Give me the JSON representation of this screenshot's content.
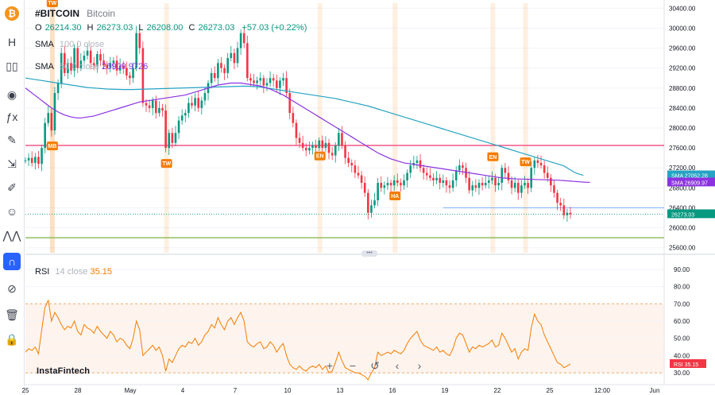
{
  "toolbar": {
    "items": [
      {
        "name": "bitcoin-logo-icon",
        "glyph": "₿"
      },
      {
        "name": "chart-type-icon",
        "glyph": "H"
      },
      {
        "name": "candles-icon",
        "glyph": "▯▯"
      },
      {
        "name": "record-icon",
        "glyph": "◉"
      },
      {
        "name": "indicators-icon",
        "glyph": "ƒx"
      },
      {
        "name": "drawing-icon",
        "glyph": "✎"
      },
      {
        "name": "measure-icon",
        "glyph": "⇲"
      },
      {
        "name": "brush-icon",
        "glyph": "✐"
      },
      {
        "name": "emoji-icon",
        "glyph": "☺"
      },
      {
        "name": "patterns-icon",
        "glyph": "⋀⋀"
      },
      {
        "name": "magnet-icon",
        "glyph": "∩"
      },
      {
        "name": "hide-icon",
        "glyph": "⊘"
      },
      {
        "name": "trash-icon",
        "glyph": "🗑"
      },
      {
        "name": "lock-icon",
        "glyph": "🔒"
      }
    ]
  },
  "legend": {
    "symbol": "#BITCOIN",
    "description": "Bitcoin",
    "ohlc": {
      "o_label": "O",
      "o": "26214.30",
      "h_label": "H",
      "h": "26273.03",
      "l_label": "L",
      "l": "26208.00",
      "c_label": "C",
      "c": "26273.03",
      "change": "+57.03 (+0.22%)"
    },
    "sma1": {
      "label": "SMA",
      "params": "100 0 close"
    },
    "sma2": {
      "label": "SMA",
      "params": "50 0 close",
      "value": "26909.9726"
    },
    "rsi": {
      "label": "RSI",
      "params": "14 close",
      "value": "35.15"
    }
  },
  "watermark": "InstaFintech",
  "nav_buttons": [
    "+",
    "−",
    "↺",
    "‹",
    "›"
  ],
  "colors": {
    "up": "#089981",
    "down": "#f23645",
    "sma100": "#26a3c4",
    "sma50": "#8c32e0",
    "resistance": "#f23672",
    "support": "#7cb342",
    "rsi": "#f57c00",
    "marker": "#f57c00",
    "grid": "#f0f3fa"
  },
  "chart_data": [
    {
      "type": "candlestick",
      "title": "#BITCOIN",
      "y_ticks": [
        25600,
        26000,
        26400,
        26800,
        27200,
        27600,
        28000,
        28400,
        28800,
        29200,
        29600,
        30000,
        30400
      ],
      "y_tick_labels": [
        "25600.00",
        "26000.00",
        "26400.00",
        "26800.00",
        "27200.00",
        "27600.00",
        "28000.00",
        "28400.00",
        "28800.00",
        "29200.00",
        "29600.00",
        "30000.00",
        "30400.00"
      ],
      "ylim": [
        25500,
        30500
      ],
      "x_tick_labels": [
        "25",
        "28",
        "May",
        "4",
        "7",
        "10",
        "13",
        "16",
        "19",
        "22",
        "25",
        "12:00",
        "Jun"
      ],
      "x_tick_index": [
        0,
        17,
        34,
        51,
        68,
        85,
        102,
        119,
        136,
        153,
        170,
        187,
        204
      ],
      "close": [
        27350,
        27400,
        27300,
        27420,
        27280,
        27600,
        28100,
        28300,
        27950,
        28700,
        28900,
        29500,
        29100,
        29300,
        29150,
        29600,
        29200,
        29350,
        29450,
        29550,
        29300,
        29250,
        29480,
        29350,
        29250,
        29200,
        29300,
        29350,
        29150,
        29250,
        29200,
        29050,
        29000,
        29200,
        29900,
        29600,
        28500,
        28450,
        28400,
        28550,
        28300,
        28400,
        28350,
        27600,
        27900,
        27700,
        27900,
        28150,
        28250,
        28300,
        28500,
        28450,
        28600,
        28400,
        28550,
        28700,
        28900,
        29100,
        29000,
        29300,
        29200,
        29100,
        29400,
        29500,
        29300,
        29600,
        29900,
        29700,
        29000,
        28950,
        28900,
        28950,
        29000,
        28850,
        28900,
        29000,
        28950,
        28800,
        28950,
        29000,
        28700,
        28300,
        28100,
        27800,
        27700,
        27600,
        27550,
        27600,
        27650,
        27600,
        27750,
        27600,
        27700,
        27500,
        27450,
        27650,
        27900,
        27650,
        27400,
        27300,
        27250,
        27100,
        27050,
        26900,
        26700,
        26300,
        26450,
        26550,
        26900,
        26800,
        26850,
        26900,
        26850,
        26950,
        26900,
        26850,
        26950,
        27100,
        27250,
        27300,
        27350,
        27200,
        27100,
        27050,
        27000,
        26950,
        27000,
        26900,
        26950,
        26850,
        26800,
        26950,
        27150,
        27250,
        27200,
        27000,
        26750,
        26850,
        26800,
        26900,
        26850,
        26900,
        26950,
        27000,
        26850,
        26900,
        27200,
        27100,
        26950,
        26800,
        26900,
        26700,
        26850,
        26900,
        26800,
        27200,
        27350,
        27300,
        27250,
        27100,
        27000,
        26850,
        26700,
        26500,
        26450,
        26250,
        26300,
        26273.03
      ],
      "sma100": [
        29000,
        28990,
        28980,
        28970,
        28960,
        28950,
        28940,
        28930,
        28920,
        28910,
        28900,
        28890,
        28880,
        28870,
        28860,
        28850,
        28840,
        28830,
        28820,
        28810,
        28805,
        28800,
        28795,
        28790,
        28785,
        28780,
        28778,
        28776,
        28774,
        28772,
        28770,
        28770,
        28770,
        28770,
        28772,
        28774,
        28776,
        28778,
        28780,
        28782,
        28784,
        28786,
        28788,
        28790,
        28792,
        28794,
        28796,
        28798,
        28800,
        28802,
        28804,
        28806,
        28808,
        28810,
        28812,
        28814,
        28816,
        28818,
        28820,
        28822,
        28824,
        28826,
        28828,
        28830,
        28832,
        28834,
        28836,
        28838,
        28836,
        28834,
        28830,
        28825,
        28820,
        28810,
        28800,
        28790,
        28780,
        28770,
        28760,
        28750,
        28740,
        28730,
        28720,
        28710,
        28700,
        28690,
        28680,
        28670,
        28660,
        28650,
        28640,
        28630,
        28620,
        28610,
        28600,
        28590,
        28575,
        28560,
        28545,
        28530,
        28515,
        28500,
        28485,
        28470,
        28455,
        28440,
        28420,
        28400,
        28380,
        28360,
        28340,
        28320,
        28300,
        28280,
        28260,
        28240,
        28220,
        28200,
        28180,
        28160,
        28140,
        28120,
        28100,
        28080,
        28060,
        28040,
        28020,
        28000,
        27980,
        27960,
        27940,
        27920,
        27900,
        27880,
        27860,
        27840,
        27820,
        27800,
        27780,
        27760,
        27740,
        27720,
        27700,
        27680,
        27660,
        27640,
        27620,
        27600,
        27580,
        27560,
        27540,
        27520,
        27500,
        27480,
        27460,
        27440,
        27420,
        27400,
        27380,
        27360,
        27340,
        27320,
        27300,
        27280,
        27260,
        27240,
        27200,
        27160,
        27120,
        27090,
        27070,
        27052.28
      ],
      "sma50": [
        28800,
        28750,
        28700,
        28650,
        28600,
        28550,
        28500,
        28450,
        28400,
        28360,
        28320,
        28290,
        28260,
        28240,
        28220,
        28210,
        28200,
        28200,
        28210,
        28220,
        28230,
        28240,
        28260,
        28280,
        28300,
        28320,
        28340,
        28360,
        28380,
        28400,
        28420,
        28440,
        28460,
        28480,
        28500,
        28520,
        28530,
        28540,
        28550,
        28560,
        28570,
        28580,
        28590,
        28600,
        28610,
        28620,
        28630,
        28640,
        28650,
        28660,
        28680,
        28700,
        28720,
        28740,
        28760,
        28780,
        28800,
        28820,
        28840,
        28860,
        28870,
        28880,
        28890,
        28900,
        28900,
        28900,
        28900,
        28890,
        28880,
        28870,
        28860,
        28850,
        28840,
        28820,
        28800,
        28780,
        28750,
        28720,
        28690,
        28660,
        28620,
        28580,
        28540,
        28500,
        28460,
        28420,
        28380,
        28340,
        28300,
        28260,
        28220,
        28180,
        28140,
        28100,
        28060,
        28020,
        27980,
        27940,
        27900,
        27860,
        27820,
        27780,
        27740,
        27700,
        27660,
        27620,
        27580,
        27540,
        27500,
        27470,
        27440,
        27410,
        27380,
        27360,
        27340,
        27320,
        27300,
        27290,
        27280,
        27270,
        27260,
        27250,
        27240,
        27230,
        27220,
        27210,
        27200,
        27190,
        27180,
        27170,
        27160,
        27150,
        27140,
        27130,
        27120,
        27110,
        27100,
        27090,
        27080,
        27070,
        27060,
        27050,
        27040,
        27030,
        27020,
        27010,
        27000,
        26995,
        26990,
        26985,
        26980,
        26978,
        26976,
        26974,
        26972,
        26970,
        26968,
        26966,
        26964,
        26962,
        26960,
        26958,
        26956,
        26954,
        26950,
        26945,
        26940,
        26935,
        26930,
        26925,
        26920,
        26915,
        26912,
        26909.97
      ],
      "levels": {
        "resistance": 27650,
        "support": 25800,
        "pivot": 26400,
        "current": 26273.03
      },
      "markers": [
        {
          "label": "TW",
          "index": 18,
          "direction": "down"
        },
        {
          "label": "MB",
          "index": 18,
          "direction": "up"
        },
        {
          "label": "TW",
          "index": 92,
          "direction": "up"
        },
        {
          "label": "EN",
          "index": 191,
          "direction": "up"
        },
        {
          "label": "HA",
          "index": 241,
          "direction": "up"
        },
        {
          "label": "EN",
          "index": 304,
          "direction": "down"
        },
        {
          "label": "TW",
          "index": 326,
          "direction": "down"
        }
      ],
      "price_tags": [
        {
          "label": "SMA",
          "value": "27052.28",
          "color": "#26a3c4"
        },
        {
          "label": "SMA",
          "value": "26909.97",
          "color": "#8c32e0"
        },
        {
          "label": "",
          "value": "26273.03",
          "color": "#089981"
        }
      ]
    },
    {
      "type": "line",
      "title": "RSI",
      "y_ticks": [
        30,
        40,
        50,
        60,
        70,
        80,
        90
      ],
      "y_tick_labels": [
        "30.00",
        "40.00",
        "50.00",
        "60.00",
        "70.00",
        "80.00",
        "90.00"
      ],
      "ylim": [
        25,
        95
      ],
      "bands": [
        30,
        70
      ],
      "values": [
        42,
        44,
        43,
        45,
        41,
        55,
        68,
        72,
        60,
        65,
        62,
        58,
        55,
        57,
        56,
        60,
        54,
        52,
        58,
        56,
        55,
        53,
        57,
        54,
        52,
        50,
        54,
        52,
        48,
        50,
        49,
        46,
        44,
        50,
        60,
        55,
        40,
        42,
        44,
        46,
        43,
        45,
        40,
        31,
        38,
        36,
        40,
        44,
        46,
        45,
        48,
        47,
        50,
        46,
        48,
        52,
        54,
        58,
        56,
        62,
        58,
        55,
        60,
        62,
        58,
        62,
        65,
        60,
        48,
        46,
        45,
        47,
        48,
        44,
        45,
        48,
        46,
        42,
        45,
        47,
        40,
        35,
        33,
        32,
        34,
        32,
        31,
        33,
        34,
        33,
        35,
        32,
        34,
        30,
        31,
        36,
        42,
        37,
        33,
        32,
        31,
        30,
        30,
        29,
        28,
        26,
        30,
        33,
        42,
        40,
        41,
        42,
        41,
        43,
        42,
        41,
        43,
        47,
        50,
        52,
        54,
        49,
        46,
        45,
        44,
        43,
        45,
        42,
        43,
        41,
        40,
        44,
        50,
        53,
        52,
        47,
        42,
        45,
        44,
        46,
        45,
        46,
        47,
        49,
        45,
        46,
        53,
        50,
        46,
        42,
        44,
        38,
        42,
        44,
        43,
        56,
        64,
        60,
        58,
        52,
        48,
        44,
        40,
        36,
        35,
        33,
        34,
        35.15
      ],
      "current": "35.15"
    }
  ]
}
